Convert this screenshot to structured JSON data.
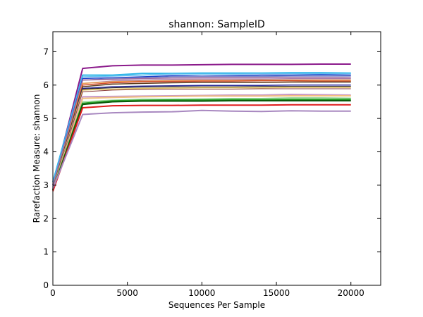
{
  "chart_data": {
    "type": "line",
    "title": "shannon: SampleID",
    "xlabel": "Sequences Per Sample",
    "ylabel": "Rarefaction Measure: shannon",
    "xlim": [
      0,
      22000
    ],
    "ylim": [
      0,
      7.6
    ],
    "grid": false,
    "legend": "none",
    "x_ticks": [
      0,
      5000,
      10000,
      15000,
      20000
    ],
    "y_ticks": [
      0,
      1,
      2,
      3,
      4,
      5,
      6,
      7
    ],
    "x": [
      0,
      2000,
      4000,
      6000,
      8000,
      10000,
      12000,
      14000,
      16000,
      18000,
      20000
    ],
    "series": [
      {
        "color": "#8b1a8b",
        "width": 2,
        "values": [
          3.0,
          6.5,
          6.58,
          6.6,
          6.6,
          6.61,
          6.62,
          6.62,
          6.62,
          6.63,
          6.63
        ]
      },
      {
        "color": "#2cb5e8",
        "width": 2,
        "values": [
          3.1,
          6.3,
          6.3,
          6.35,
          6.35,
          6.36,
          6.36,
          6.36,
          6.37,
          6.37,
          6.36
        ]
      },
      {
        "color": "#60c0f0",
        "width": 1.5,
        "values": [
          3.05,
          6.25,
          6.27,
          6.3,
          6.33,
          6.33,
          6.33,
          6.34,
          6.34,
          6.34,
          6.34
        ]
      },
      {
        "color": "#1a3cc8",
        "width": 1.5,
        "values": [
          3.0,
          6.2,
          6.22,
          6.25,
          6.28,
          6.27,
          6.28,
          6.3,
          6.3,
          6.31,
          6.3
        ]
      },
      {
        "color": "#7a86c8",
        "width": 1.5,
        "values": [
          3.0,
          6.15,
          6.2,
          6.22,
          6.25,
          6.26,
          6.26,
          6.26,
          6.27,
          6.27,
          6.27
        ]
      },
      {
        "color": "#a06aa0",
        "width": 1.5,
        "values": [
          2.95,
          6.15,
          6.17,
          6.2,
          6.21,
          6.22,
          6.22,
          6.22,
          6.23,
          6.23,
          6.22
        ]
      },
      {
        "color": "#a87ca8",
        "width": 1.5,
        "values": [
          2.95,
          6.05,
          6.12,
          6.15,
          6.17,
          6.18,
          6.18,
          6.18,
          6.19,
          6.19,
          6.19
        ]
      },
      {
        "color": "#f0a050",
        "width": 1.5,
        "values": [
          2.9,
          6.05,
          6.1,
          6.12,
          6.13,
          6.14,
          6.14,
          6.15,
          6.15,
          6.15,
          6.15
        ]
      },
      {
        "color": "#d04a2a",
        "width": 1.5,
        "values": [
          2.9,
          6.0,
          6.07,
          6.1,
          6.11,
          6.12,
          6.12,
          6.13,
          6.13,
          6.12,
          6.12
        ]
      },
      {
        "color": "#5a3a1a",
        "width": 1.5,
        "values": [
          2.9,
          5.95,
          6.03,
          6.05,
          6.07,
          6.08,
          6.08,
          6.08,
          6.09,
          6.09,
          6.09
        ]
      },
      {
        "color": "#2a2a9a",
        "width": 1.5,
        "values": [
          2.9,
          5.9,
          5.95,
          5.97,
          5.98,
          5.99,
          5.99,
          5.99,
          6.0,
          6.0,
          6.0
        ]
      },
      {
        "color": "#1a1a1a",
        "width": 1,
        "values": [
          2.88,
          5.88,
          5.92,
          5.94,
          5.95,
          5.95,
          5.95,
          5.96,
          5.96,
          5.96,
          5.96
        ]
      },
      {
        "color": "#e0c060",
        "width": 1.5,
        "values": [
          2.88,
          5.85,
          5.88,
          5.9,
          5.91,
          5.92,
          5.92,
          5.92,
          5.93,
          5.93,
          5.93
        ]
      },
      {
        "color": "#8a3a3a",
        "width": 1,
        "values": [
          2.85,
          5.8,
          5.85,
          5.87,
          5.88,
          5.88,
          5.88,
          5.89,
          5.89,
          5.89,
          5.89
        ]
      },
      {
        "color": "#c898c8",
        "width": 2,
        "values": [
          2.85,
          5.65,
          5.66,
          5.67,
          5.68,
          5.69,
          5.7,
          5.7,
          5.72,
          5.71,
          5.7
        ]
      },
      {
        "color": "#f0c080",
        "width": 2,
        "values": [
          2.85,
          5.6,
          5.63,
          5.65,
          5.66,
          5.67,
          5.67,
          5.67,
          5.68,
          5.68,
          5.68
        ]
      },
      {
        "color": "#98d898",
        "width": 1.5,
        "values": [
          2.85,
          5.5,
          5.55,
          5.58,
          5.58,
          5.59,
          5.6,
          5.6,
          5.62,
          5.62,
          5.61
        ]
      },
      {
        "color": "#2aa02a",
        "width": 2.5,
        "values": [
          2.85,
          5.45,
          5.52,
          5.54,
          5.55,
          5.55,
          5.56,
          5.56,
          5.57,
          5.57,
          5.57
        ]
      },
      {
        "color": "#0a5a0a",
        "width": 2,
        "values": [
          2.85,
          5.42,
          5.5,
          5.52,
          5.52,
          5.52,
          5.53,
          5.53,
          5.53,
          5.53,
          5.53
        ]
      },
      {
        "color": "#e01a1a",
        "width": 2,
        "values": [
          2.82,
          5.32,
          5.38,
          5.39,
          5.39,
          5.4,
          5.4,
          5.4,
          5.41,
          5.41,
          5.41
        ]
      },
      {
        "color": "#a888c0",
        "width": 2,
        "values": [
          2.9,
          5.12,
          5.17,
          5.19,
          5.2,
          5.24,
          5.22,
          5.21,
          5.23,
          5.22,
          5.22
        ]
      }
    ]
  }
}
